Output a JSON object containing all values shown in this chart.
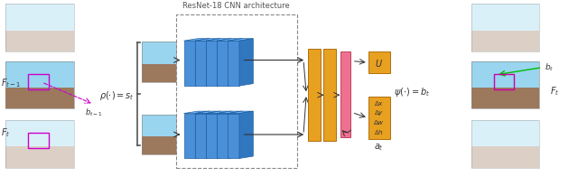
{
  "fig_width": 6.4,
  "fig_height": 2.07,
  "dpi": 100,
  "bg_color": "#ffffff",
  "arrows_color": "#333333",
  "magenta_color": "#cc00cc",
  "green_color": "#00bb00",
  "cnn_color": "#4a90d9",
  "cnn_edge": "#2060a0",
  "fc_color": "#e8a020",
  "fc_edge": "#b07010",
  "pink_color": "#f07090",
  "pink_edge": "#c04060",
  "dashed_label": "ResNet-18 CNN architecture"
}
